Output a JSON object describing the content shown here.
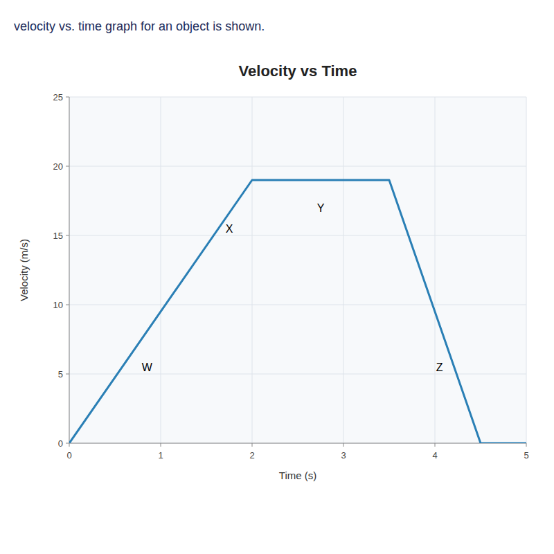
{
  "chart_data": {
    "type": "line",
    "title": "Velocity vs Time",
    "subtitle": "velocity vs. time graph for an object is shown.",
    "xlabel": "Time (s)",
    "ylabel": "Velocity (m/s)",
    "x": [
      0,
      2,
      3.5,
      4.5,
      5
    ],
    "values": [
      0,
      19,
      19,
      0,
      0
    ],
    "color": "#2a7fb5",
    "xlim": [
      0,
      5
    ],
    "ylim": [
      0,
      25
    ],
    "xticks": [
      0,
      1,
      2,
      3,
      4,
      5
    ],
    "yticks": [
      0,
      5,
      10,
      15,
      20,
      25
    ],
    "grid": true,
    "annotations": [
      {
        "text": "W",
        "x": 0.85,
        "y": 5.5
      },
      {
        "text": "X",
        "x": 1.75,
        "y": 15.5
      },
      {
        "text": "Y",
        "x": 2.75,
        "y": 17.0
      },
      {
        "text": "Z",
        "x": 4.05,
        "y": 5.5
      }
    ]
  }
}
